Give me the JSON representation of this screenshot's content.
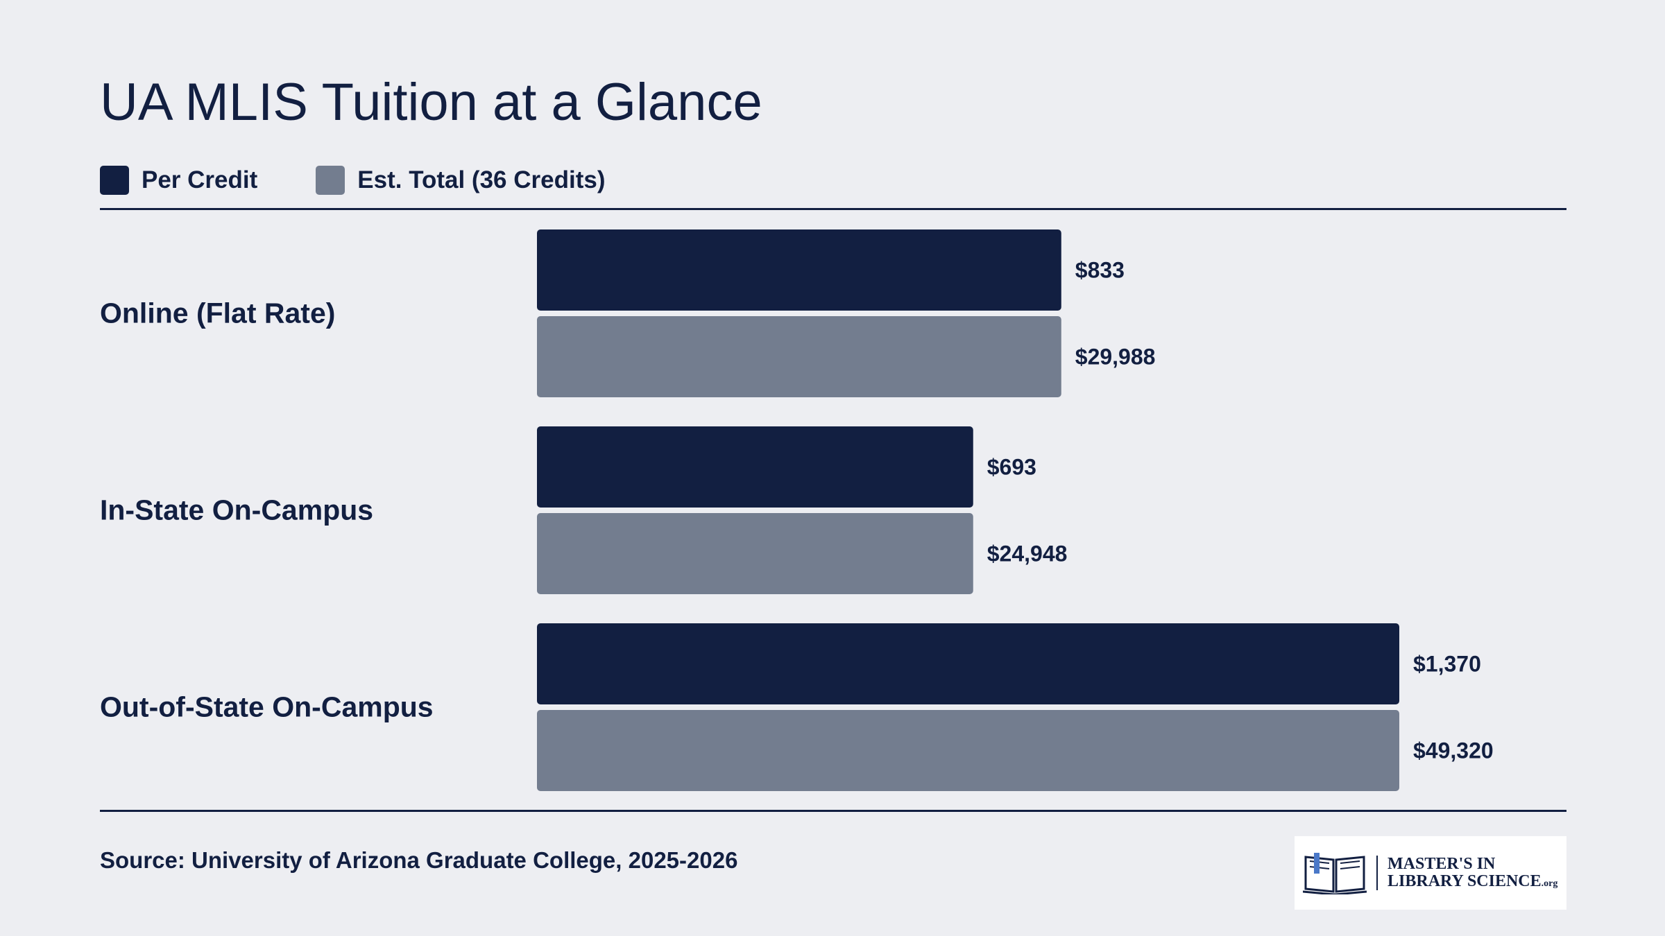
{
  "chart_data": {
    "type": "bar",
    "orientation": "horizontal",
    "title": "UA MLIS Tuition at a Glance",
    "categories": [
      "Online (Flat Rate)",
      "In-State On-Campus",
      "Out-of-State On-Campus"
    ],
    "series": [
      {
        "name": "Per Credit",
        "values": [
          833,
          693,
          1370
        ],
        "value_labels": [
          "$833",
          "$693",
          "$1,370"
        ],
        "color": "#121f41"
      },
      {
        "name": "Est. Total (36 Credits)",
        "values": [
          29988,
          24948,
          49320
        ],
        "value_labels": [
          "$29,988",
          "$24,948",
          "$49,320"
        ],
        "color": "#737d8f"
      }
    ],
    "legend_position": "top-left",
    "grid": false,
    "note": "Each series scaled to its own maximum"
  },
  "source": "Source: University of Arizona Graduate College, 2025-2026",
  "logo": {
    "line1": "MASTER'S IN",
    "line2": "LIBRARY SCIENCE",
    "suffix": ".org"
  },
  "colors": {
    "background": "#edeef2",
    "text": "#121f41",
    "per_credit": "#121f41",
    "total": "#737d8f"
  }
}
